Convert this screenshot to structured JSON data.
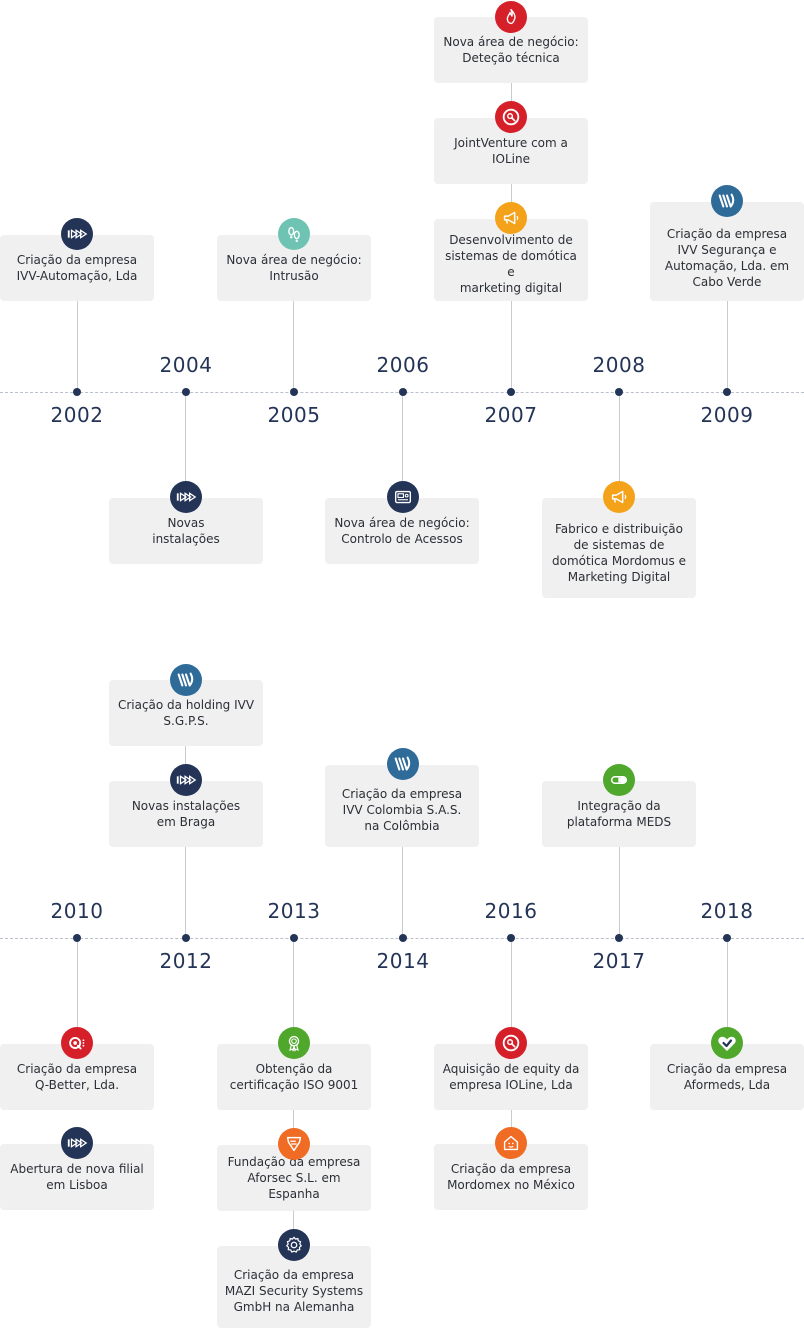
{
  "colors": {
    "navy": "#243457",
    "blue": "#2f6b99",
    "red": "#d5202a",
    "orange": "#f5a21b",
    "teal": "#6fc3b3",
    "green": "#4fa82b",
    "orange_red": "#f06b23",
    "card_bg": "#f0f0f0"
  },
  "years": {
    "y2002": "2002",
    "y2004": "2004",
    "y2005": "2005",
    "y2006": "2006",
    "y2007": "2007",
    "y2008": "2008",
    "y2009": "2009",
    "y2010": "2010",
    "y2012": "2012",
    "y2013": "2013",
    "y2014": "2014",
    "y2016": "2016",
    "y2017": "2017",
    "y2018": "2018"
  },
  "events": {
    "e2002": "Criação da empresa\nIVV-Automação, Lda",
    "e2004": "Novas\ninstalações",
    "e2005": "Nova área de negócio:\nIntrusão",
    "e2006": "Nova área de negócio:\nControlo de Acessos",
    "e2007a": "Nova área de negócio:\nDeteção técnica",
    "e2007b": "JointVenture com a\nIOLine",
    "e2007c": "Desenvolvimento de\nsistemas de domótica e\nmarketing digital",
    "e2008": "Fabrico e distribuição\nde sistemas de\ndomótica Mordomus e\nMarketing Digital",
    "e2009": "Criação da empresa\nIVV Segurança e\nAutomação, Lda. em\nCabo Verde",
    "e2010a": "Criação da empresa\nQ-Better, Lda.",
    "e2010b": "Abertura de nova filial\nem Lisboa",
    "e2012a": "Criação da holding IVV\nS.G.P.S.",
    "e2012b": "Novas instalações\nem Braga",
    "e2013a": "Obtenção da\ncertificação ISO 9001",
    "e2013b": "Fundação da empresa\nAforsec S.L. em Espanha",
    "e2013c": "Criação da empresa\nMAZI Security Systems\nGmbH na Alemanha",
    "e2014": "Criação da empresa\nIVV Colombia S.A.S.\nna Colômbia",
    "e2016a": "Aquisição de equity da\nempresa IOLine, Lda",
    "e2016b": "Criação da empresa\nMordomex no México",
    "e2017": "Integração da\nplataforma MEDS",
    "e2018": "Criação da empresa\nAformeds, Lda"
  },
  "icons": {
    "ivv_arrows": "ivv-arrows-icon",
    "ivv_w": "ivv-w-logo-icon",
    "flame": "flame-icon",
    "ioline": "ioline-target-icon",
    "megaphone": "megaphone-icon",
    "footprints": "footprints-icon",
    "access_panel": "access-control-panel-icon",
    "qbetter": "qbetter-logo-icon",
    "award": "award-ribbon-icon",
    "shield": "aforsec-shield-icon",
    "gear": "gear-icon",
    "pill": "pill-icon",
    "mordomex": "mordomex-house-icon",
    "heart": "aformeds-heart-icon"
  }
}
